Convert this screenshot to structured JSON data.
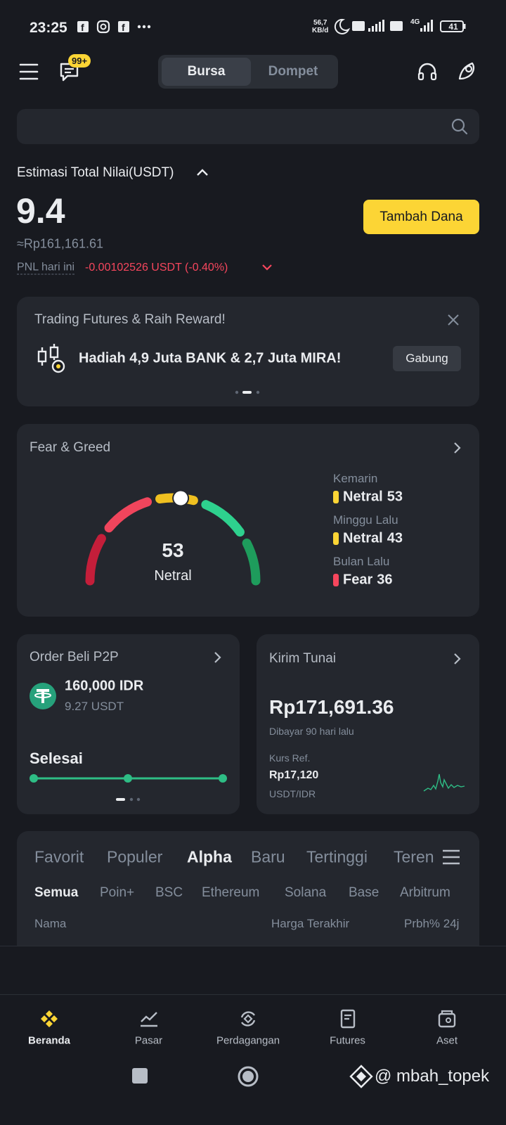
{
  "status_bar": {
    "time": "23:25",
    "net_speed": "56,7",
    "net_unit": "KB/d",
    "network": "4G",
    "battery": "41"
  },
  "header": {
    "badge": "99+",
    "tabs": [
      "Bursa",
      "Dompet"
    ]
  },
  "balance": {
    "label": "Estimasi Total Nilai(USDT)",
    "value": "9.4",
    "idr": "≈Rp161,161.61",
    "pnl_label": "PNL hari ini",
    "pnl_value": "-0.00102526 USDT",
    "pnl_percent": "(-0.40%)",
    "button": "Tambah Dana"
  },
  "banner": {
    "title": "Trading Futures & Raih Reward!",
    "text": "Hadiah 4,9 Juta BANK & 2,7 Juta MIRA!",
    "button": "Gabung"
  },
  "fear_greed": {
    "title": "Fear & Greed",
    "value": 53,
    "label": "Netral",
    "history": [
      {
        "period": "Kemarin",
        "status": "Netral",
        "value": 53,
        "color": "#fcd535"
      },
      {
        "period": "Minggu Lalu",
        "status": "Netral",
        "value": 43,
        "color": "#fcd535"
      },
      {
        "period": "Bulan Lalu",
        "status": "Fear",
        "value": 36,
        "color": "#f6465d"
      }
    ]
  },
  "p2p": {
    "title": "Order Beli P2P",
    "amount": "160,000 IDR",
    "usdt": "9.27 USDT",
    "status": "Selesai"
  },
  "kirim_tunai": {
    "title": "Kirim Tunai",
    "amount": "Rp171,691.36",
    "subtitle": "Dibayar 90 hari lalu",
    "rate_label": "Kurs Ref.",
    "rate": "Rp17,120",
    "pair": "USDT/IDR"
  },
  "market": {
    "tabs": [
      "Favorit",
      "Populer",
      "Alpha",
      "Baru",
      "Tertinggi",
      "Teren"
    ],
    "active_tab": 2,
    "chains": [
      "Semua",
      "Poin+",
      "BSC",
      "Ethereum",
      "Solana",
      "Base",
      "Arbitrum"
    ],
    "active_chain": 0,
    "columns": [
      "Nama",
      "Harga Terakhir",
      "Prbh% 24j"
    ]
  },
  "nav": {
    "items": [
      "Beranda",
      "Pasar",
      "Perdagangan",
      "Futures",
      "Aset"
    ],
    "active": 0
  },
  "watermark": "@ mbah_topek"
}
